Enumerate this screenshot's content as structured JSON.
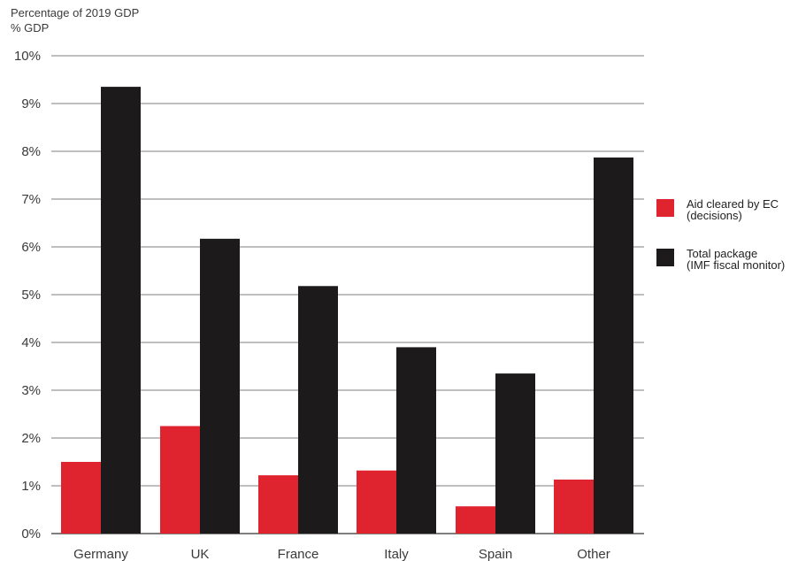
{
  "chart_data": {
    "type": "bar",
    "title": "Percentage of 2019 GDP",
    "ylabel": "% GDP",
    "categories": [
      "Germany",
      "UK",
      "France",
      "Italy",
      "Spain",
      "Other"
    ],
    "series": [
      {
        "name_lines": [
          "Aid cleared by EC",
          "(decisions)"
        ],
        "color": "#e0242f",
        "values": [
          1.5,
          2.25,
          1.22,
          1.32,
          0.57,
          1.13
        ]
      },
      {
        "name_lines": [
          "Total package",
          "(IMF fiscal monitor)"
        ],
        "color": "#1c1a1b",
        "values": [
          9.35,
          6.17,
          5.18,
          3.9,
          3.35,
          7.87
        ]
      }
    ],
    "ylim": [
      0,
      10
    ],
    "yticks": [
      "0%",
      "1%",
      "2%",
      "3%",
      "4%",
      "5%",
      "6%",
      "7%",
      "8%",
      "9%",
      "10%"
    ],
    "grid": true,
    "legend_position": "right"
  }
}
